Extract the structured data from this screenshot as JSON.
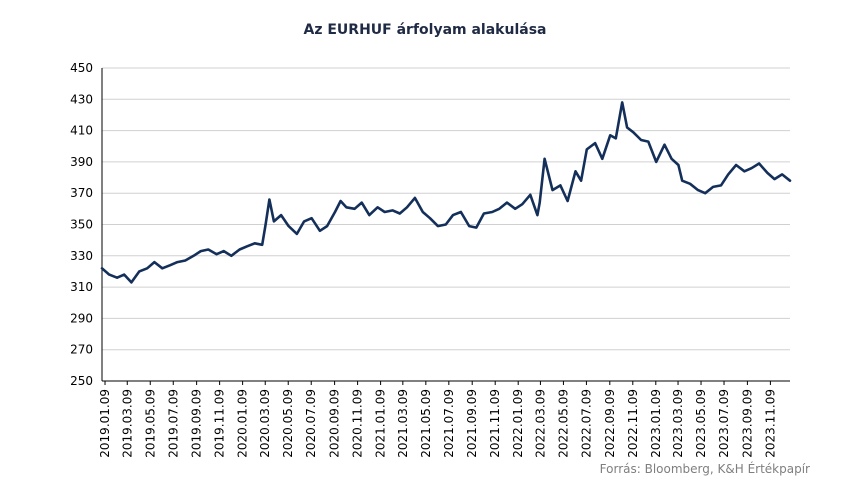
{
  "chart_data": {
    "type": "line",
    "title": "Az EURHUF árfolyam alakulása",
    "source": "Forrás: Bloomberg, K&H Értékpapír",
    "xlabel": "",
    "ylabel": "",
    "ylim": [
      250,
      450
    ],
    "yticks": [
      "450",
      "430",
      "410",
      "390",
      "370",
      "350",
      "330",
      "310",
      "290",
      "270",
      "250"
    ],
    "xticks": [
      "2019.01.09",
      "2019.03.09",
      "2019.05.09",
      "2019.07.09",
      "2019.09.09",
      "2019.11.09",
      "2020.01.09",
      "2020.03.09",
      "2020.05.09",
      "2020.07.09",
      "2020.09.09",
      "2020.11.09",
      "2021.01.09",
      "2021.03.09",
      "2021.05.09",
      "2021.07.09",
      "2021.09.09",
      "2021.11.09",
      "2022.01.09",
      "2022.03.09",
      "2022.05.09",
      "2022.07.09",
      "2022.09.09",
      "2022.11.09",
      "2023.01.09",
      "2023.03.09",
      "2023.05.09",
      "2023.07.09",
      "2023.09.09",
      "2023.11.09"
    ],
    "grid": true,
    "line_color": "#14305a",
    "series": [
      {
        "x": [
          "2019.01.01",
          "2019.01.20",
          "2019.02.10",
          "2019.03.01",
          "2019.03.20",
          "2019.04.10",
          "2019.05.01",
          "2019.05.20",
          "2019.06.10",
          "2019.07.01",
          "2019.07.20",
          "2019.08.10",
          "2019.09.01",
          "2019.09.20",
          "2019.10.10",
          "2019.11.01",
          "2019.11.20",
          "2019.12.10",
          "2020.01.01",
          "2020.01.20",
          "2020.02.10",
          "2020.03.01",
          "2020.03.10",
          "2020.03.20",
          "2020.04.01",
          "2020.04.20",
          "2020.05.10",
          "2020.06.01",
          "2020.06.20",
          "2020.07.10",
          "2020.08.01",
          "2020.08.20",
          "2020.09.10",
          "2020.09.25",
          "2020.10.10",
          "2020.11.01",
          "2020.11.20",
          "2020.12.10",
          "2021.01.01",
          "2021.01.20",
          "2021.02.10",
          "2021.03.01",
          "2021.03.20",
          "2021.04.10",
          "2021.05.01",
          "2021.05.20",
          "2021.06.10",
          "2021.07.01",
          "2021.07.20",
          "2021.08.10",
          "2021.09.01",
          "2021.09.20",
          "2021.10.10",
          "2021.11.01",
          "2021.11.20",
          "2021.12.10",
          "2022.01.01",
          "2022.01.20",
          "2022.02.10",
          "2022.03.01",
          "2022.03.07",
          "2022.03.20",
          "2022.04.10",
          "2022.05.01",
          "2022.05.20",
          "2022.06.10",
          "2022.06.25",
          "2022.07.10",
          "2022.08.01",
          "2022.08.20",
          "2022.09.10",
          "2022.09.25",
          "2022.10.12",
          "2022.10.25",
          "2022.11.10",
          "2022.12.01",
          "2022.12.20",
          "2023.01.10",
          "2023.02.01",
          "2023.02.20",
          "2023.03.10",
          "2023.03.20",
          "2023.04.10",
          "2023.05.01",
          "2023.05.20",
          "2023.06.10",
          "2023.07.01",
          "2023.07.20",
          "2023.08.10",
          "2023.09.01",
          "2023.09.20",
          "2023.10.10",
          "2023.11.01",
          "2023.11.20",
          "2023.12.10",
          "2023.12.31"
        ],
        "y": [
          322,
          318,
          316,
          318,
          313,
          320,
          322,
          326,
          322,
          324,
          326,
          327,
          330,
          333,
          334,
          331,
          333,
          330,
          334,
          336,
          338,
          337,
          350,
          366,
          352,
          356,
          349,
          344,
          352,
          354,
          346,
          349,
          358,
          365,
          361,
          360,
          364,
          356,
          361,
          358,
          359,
          357,
          361,
          367,
          358,
          354,
          349,
          350,
          356,
          358,
          349,
          348,
          357,
          358,
          360,
          364,
          360,
          363,
          369,
          356,
          364,
          392,
          372,
          375,
          365,
          384,
          378,
          398,
          402,
          392,
          407,
          405,
          428,
          412,
          409,
          404,
          403,
          390,
          401,
          392,
          388,
          378,
          376,
          372,
          370,
          374,
          375,
          382,
          388,
          384,
          386,
          389,
          383,
          379,
          382,
          378
        ]
      }
    ]
  }
}
